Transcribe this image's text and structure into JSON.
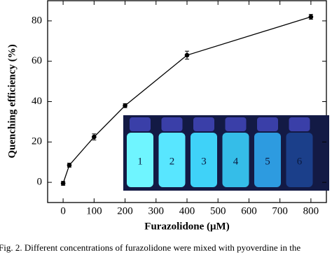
{
  "chart_data": {
    "type": "line",
    "x_label": "Furazolidone (μM)",
    "y_label": "Quenching efficiency (%)",
    "caption": "Fig. 2. Different concentrations of furazolidone were mixed with pyoverdine in the",
    "x": [
      0,
      20,
      100,
      200,
      400,
      800
    ],
    "series": [
      {
        "color": "#000000",
        "values": [
          -0.5,
          8.5,
          22.5,
          38,
          63,
          82
        ],
        "errors": [
          1,
          1,
          1.5,
          1,
          2,
          1.2
        ]
      }
    ],
    "xlim": [
      -50,
      850
    ],
    "xticks": [
      0,
      100,
      200,
      300,
      400,
      500,
      600,
      700,
      800
    ],
    "ylim": [
      -10,
      90
    ],
    "yticks": [
      0,
      20,
      40,
      60,
      80
    ],
    "inset_labels": [
      "1",
      "2",
      "3",
      "4",
      "5",
      "6"
    ]
  }
}
